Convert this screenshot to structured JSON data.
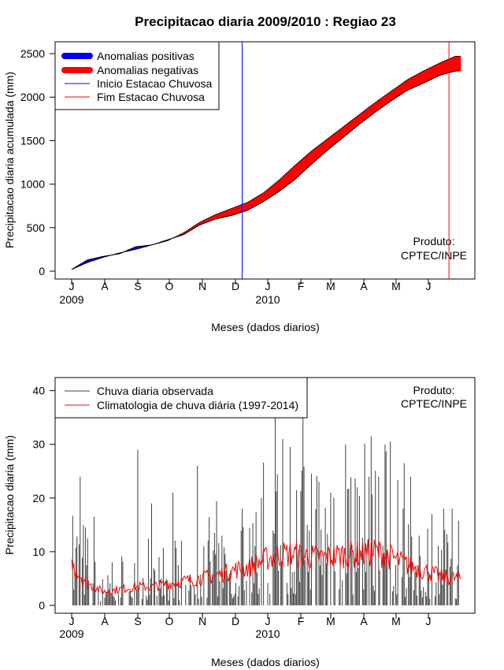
{
  "title": "Precipitacao diaria 2009/2010 : Regiao 23",
  "chart_data": [
    {
      "type": "area",
      "ylabel": "Precipitacao diaria acumulada (mm)",
      "xlabel": "Meses (dados diarios)",
      "ylim": [
        0,
        2600
      ],
      "yticks": [
        0,
        500,
        1000,
        1500,
        2000,
        2500
      ],
      "month_labels": [
        "J",
        "A",
        "S",
        "O",
        "N",
        "D",
        "J",
        "F",
        "M",
        "A",
        "M",
        "J"
      ],
      "year_labels": [
        "2009",
        "2010"
      ],
      "legend": [
        "Anomalias positivas",
        "Anomalias negativas",
        "Inicio Estacao Chuvosa",
        "Fim Estacao Chuvosa"
      ],
      "annotation": [
        "Produto:",
        "CPTEC/INPE"
      ],
      "colors": {
        "positive": "#0000ee",
        "negative": "#ff0000",
        "inicio": "#0000ff",
        "fim": "#ff0000"
      },
      "inicio_day": 160,
      "fim_day": 354,
      "x_days": [
        0,
        15,
        30,
        45,
        60,
        75,
        90,
        105,
        120,
        135,
        150,
        165,
        180,
        195,
        210,
        225,
        240,
        255,
        270,
        285,
        300,
        315,
        330,
        345,
        360
      ],
      "observed": [
        20,
        130,
        170,
        200,
        280,
        300,
        360,
        420,
        530,
        600,
        640,
        700,
        800,
        920,
        1060,
        1230,
        1390,
        1540,
        1690,
        1830,
        1960,
        2080,
        2160,
        2250,
        2300
      ],
      "climatology": [
        20,
        100,
        160,
        210,
        250,
        300,
        350,
        440,
        560,
        650,
        720,
        790,
        900,
        1050,
        1220,
        1380,
        1520,
        1660,
        1800,
        1940,
        2070,
        2200,
        2300,
        2390,
        2470
      ]
    },
    {
      "type": "line",
      "ylabel": "Precipitacao diaria (mm)",
      "xlabel": "Meses (dados diarios)",
      "ylim": [
        0,
        42
      ],
      "yticks": [
        0,
        10,
        20,
        30,
        40
      ],
      "month_labels": [
        "J",
        "A",
        "S",
        "O",
        "N",
        "D",
        "J",
        "F",
        "M",
        "A",
        "M",
        "J"
      ],
      "year_labels": [
        "2009",
        "2010"
      ],
      "legend": [
        "Chuva diaria observada",
        "Climatologia de chuva diária (1997-2014)"
      ],
      "annotation": [
        "Produto:",
        "CPTEC/INPE"
      ],
      "colors": {
        "observed": "#404040",
        "climatology": "#ff0000"
      },
      "x_days": [
        0,
        15,
        30,
        45,
        60,
        75,
        90,
        105,
        120,
        135,
        150,
        165,
        180,
        195,
        210,
        225,
        240,
        255,
        270,
        285,
        300,
        315,
        330,
        345,
        360
      ],
      "climatology_mm": [
        7.5,
        4.0,
        2.5,
        3.0,
        3.5,
        3.5,
        4.0,
        4.5,
        5.0,
        5.5,
        6.5,
        7.0,
        8.5,
        9.5,
        9.5,
        9.0,
        9.0,
        9.5,
        9.5,
        10.0,
        9.0,
        7.5,
        6.5,
        5.5,
        5.0
      ],
      "peak_days": [
        1,
        8,
        11,
        13,
        21,
        38,
        62,
        75,
        84,
        95,
        103,
        118,
        124,
        141,
        160,
        178,
        191,
        198,
        205,
        211,
        217,
        221,
        225,
        232,
        243,
        257,
        268,
        281,
        288,
        299,
        312,
        318,
        326,
        338,
        349,
        357
      ],
      "peak_mm": [
        16.7,
        24.0,
        15.0,
        14.5,
        16.5,
        8.0,
        29.0,
        19.0,
        5.0,
        21.0,
        12.0,
        26.0,
        11.0,
        13.0,
        18.0,
        20.0,
        35.0,
        31.0,
        29.5,
        21.5,
        37.5,
        15.0,
        24.5,
        23.0,
        21.0,
        30.0,
        22.0,
        31.5,
        24.0,
        30.5,
        26.5,
        24.0,
        13.0,
        17.0,
        18.0,
        18.0
      ]
    }
  ]
}
